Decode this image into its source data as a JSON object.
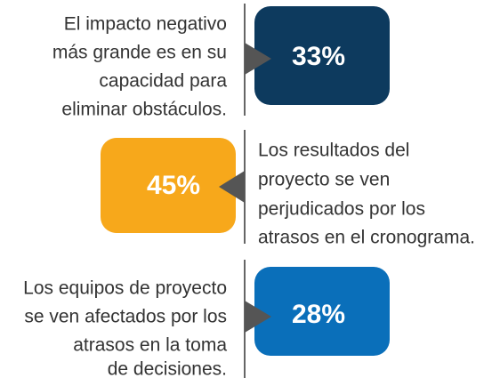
{
  "items": [
    {
      "value": "33%",
      "lines": [
        "El impacto negativo",
        "más grande es en su",
        "capacidad para",
        "eliminar obstáculos."
      ]
    },
    {
      "value": "45%",
      "lines": [
        "Los resultados del",
        "proyecto se ven",
        "perjudicados por los",
        "atrasos en el cronograma."
      ]
    },
    {
      "value": "28%",
      "lines": [
        "Los equipos de proyecto",
        "se ven afectados por los",
        "atrasos en la toma",
        "de decisiones."
      ]
    }
  ]
}
